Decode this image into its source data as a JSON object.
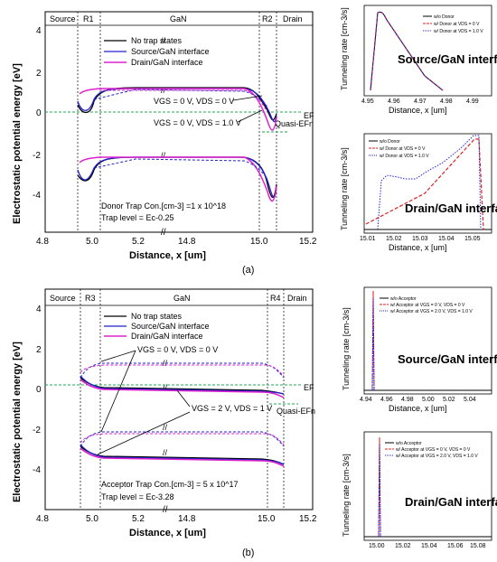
{
  "chart_data": [
    {
      "panel": "(a)",
      "type": "line",
      "xlabel": "Distance, x [um]",
      "ylabel": "Electrostatic potential energy [eV]",
      "ylim": [
        -5,
        4.5
      ],
      "yticks": [
        "4",
        "2",
        "0",
        "-2",
        "-4"
      ],
      "xticks": [
        "4.8",
        "5.0",
        "5.2",
        "14.8",
        "15.0",
        "15.2"
      ],
      "regions": [
        "Source",
        "R1",
        "GaN",
        "R2",
        "Drain"
      ],
      "series": [
        {
          "name": "No trap states",
          "color": "#000000"
        },
        {
          "name": "Source/GaN interface",
          "color": "#2222cc"
        },
        {
          "name": "Drain/GaN interface",
          "color": "#dd22cc"
        }
      ],
      "annotations": {
        "bias1": "VGS = 0 V, VDS = 0 V",
        "bias2": "VGS = 0 V, VDS = 1.0 V",
        "ef": "EF",
        "quasi": "Quasi-EFn",
        "trap_con": "Donor Trap Con.[cm-3] =1 x 10^18",
        "trap_level": "Trap level = Ec-0.25"
      }
    },
    {
      "panel": "(a) inset top",
      "type": "line",
      "title": "Source/GaN interface",
      "xlabel": "Distance, x [um]",
      "ylabel": "Tunneling rate [cm-3/s]",
      "xticks": [
        "4.95",
        "4.96",
        "4.97",
        "4.98",
        "4.99"
      ],
      "legend": [
        "w/o Donor",
        "w/ Donor at VDS = 0 V",
        "w/ Donor at VDS = 1.0 V"
      ]
    },
    {
      "panel": "(a) inset bottom",
      "type": "line",
      "title": "Drain/GaN interface",
      "xlabel": "Distance, x [um]",
      "ylabel": "Tunneling rate [cm-3/s]",
      "xticks": [
        "15.01",
        "15.02",
        "15.03",
        "15.04",
        "15.05"
      ],
      "legend": [
        "w/o Donor",
        "w/ Donor at VDS = 0 V",
        "w/ Donor at VDS = 1.0 V"
      ]
    },
    {
      "panel": "(b)",
      "type": "line",
      "xlabel": "Distance, x [um]",
      "ylabel": "Electrostatic potential energy [eV]",
      "ylim": [
        -5,
        4.5
      ],
      "yticks": [
        "4",
        "2",
        "0",
        "-2",
        "-4"
      ],
      "xticks": [
        "4.8",
        "5.0",
        "5.2",
        "14.8",
        "15.0",
        "15.2"
      ],
      "regions": [
        "Source",
        "R3",
        "GaN",
        "R4",
        "Drain"
      ],
      "series": [
        {
          "name": "No trap states",
          "color": "#000000"
        },
        {
          "name": "Source/GaN interface",
          "color": "#2222cc"
        },
        {
          "name": "Drain/GaN interface",
          "color": "#dd22cc"
        }
      ],
      "annotations": {
        "bias1": "VGS = 0 V, VDS = 0 V",
        "bias2": "VGS = 2 V, VDS = 1 V",
        "ef": "EF",
        "quasi": "Quasi-EFn",
        "trap_con": "Acceptor Trap Con.[cm-3] = 5 x 10^17",
        "trap_level": "Trap level = Ec-3.28"
      }
    },
    {
      "panel": "(b) inset top",
      "type": "line",
      "title": "Source/GaN interface",
      "xlabel": "Distance, x [um]",
      "ylabel": "Tunneling rate [cm-3/s]",
      "xticks": [
        "4.94",
        "4.96",
        "4.98",
        "5.00",
        "5.02",
        "5.04"
      ],
      "legend": [
        "w/o Acceptor",
        "w/ Acceptor at VGS = 0 V, VDS = 0 V",
        "w/ Acceptor at VGS = 2.0 V, VDS = 1.0 V"
      ]
    },
    {
      "panel": "(b) inset bottom",
      "type": "line",
      "title": "Drain/GaN interface",
      "xlabel": "Distance, x [um]",
      "ylabel": "Tunneling rate [cm-3/s]",
      "xticks": [
        "15.00",
        "15.02",
        "15.04",
        "15.06",
        "15.08"
      ],
      "legend": [
        "w/o Acceptor",
        "w/ Acceptor at VGS = 0 V, VDS = 0 V",
        "w/ Acceptor at VGS = 2.0 V, VDS = 1.0 V"
      ]
    }
  ]
}
